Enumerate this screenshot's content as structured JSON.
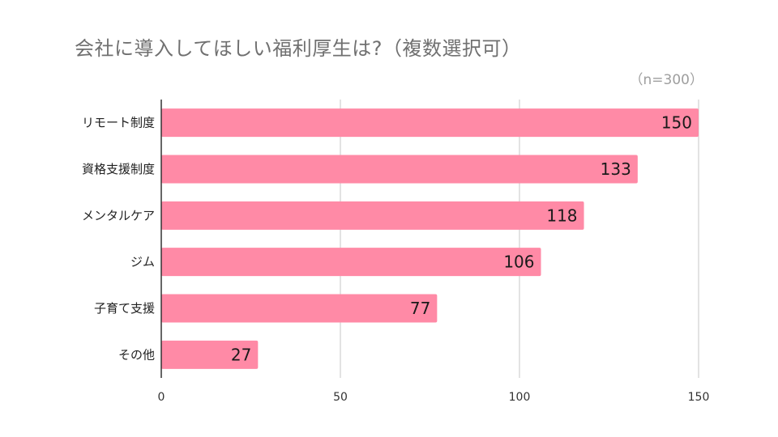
{
  "chart_data": {
    "type": "bar",
    "orientation": "horizontal",
    "title": "会社に導入してほしい福利厚生は?（複数選択可）",
    "subtitle": "（n=300）",
    "categories": [
      "リモート制度",
      "資格支援制度",
      "メンタルケア",
      "ジム",
      "子育て支援",
      "その他"
    ],
    "values": [
      150,
      133,
      118,
      106,
      77,
      27
    ],
    "xlim": [
      0,
      150
    ],
    "xticks": [
      0,
      50,
      100,
      150
    ],
    "grid": true,
    "bar_color": "#ff8aa6",
    "gridline_color": "#d0d0d0",
    "axis_color": "#333333",
    "data_labels": true
  }
}
